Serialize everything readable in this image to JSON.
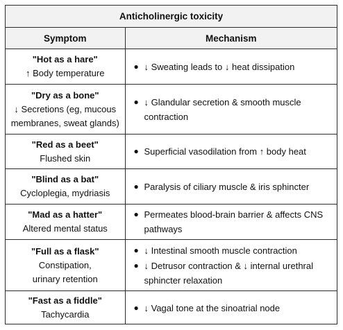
{
  "table": {
    "title": "Anticholinergic toxicity",
    "headers": {
      "symptom": "Symptom",
      "mechanism": "Mechanism"
    },
    "rows": [
      {
        "nickname": "\"Hot as a hare\"",
        "symptom_lines": [
          "↑ Body temperature"
        ],
        "mechanism": [
          "↓ Sweating leads to ↓ heat dissipation"
        ]
      },
      {
        "nickname": "\"Dry as a bone\"",
        "symptom_lines": [
          "↓ Secretions (eg, mucous",
          "membranes, sweat glands)"
        ],
        "mechanism": [
          "↓ Glandular secretion & smooth muscle contraction"
        ]
      },
      {
        "nickname": "\"Red as a beet\"",
        "symptom_lines": [
          "Flushed skin"
        ],
        "mechanism": [
          "Superficial vasodilation from ↑ body heat"
        ]
      },
      {
        "nickname": "\"Blind as a bat\"",
        "symptom_lines": [
          "Cycloplegia, mydriasis"
        ],
        "mechanism": [
          "Paralysis of ciliary muscle & iris sphincter"
        ]
      },
      {
        "nickname": "\"Mad as a hatter\"",
        "symptom_lines": [
          "Altered mental status"
        ],
        "mechanism": [
          "Permeates blood-brain barrier & affects CNS pathways"
        ]
      },
      {
        "nickname": "\"Full as a flask\"",
        "symptom_lines": [
          "Constipation,",
          "urinary retention"
        ],
        "mechanism": [
          "↓ Intestinal smooth muscle contraction",
          "↓ Detrusor contraction & ↓ internal urethral sphincter relaxation"
        ]
      },
      {
        "nickname": "\"Fast as a fiddle\"",
        "symptom_lines": [
          "Tachycardia"
        ],
        "mechanism": [
          "↓ Vagal tone at the sinoatrial node"
        ]
      }
    ]
  }
}
